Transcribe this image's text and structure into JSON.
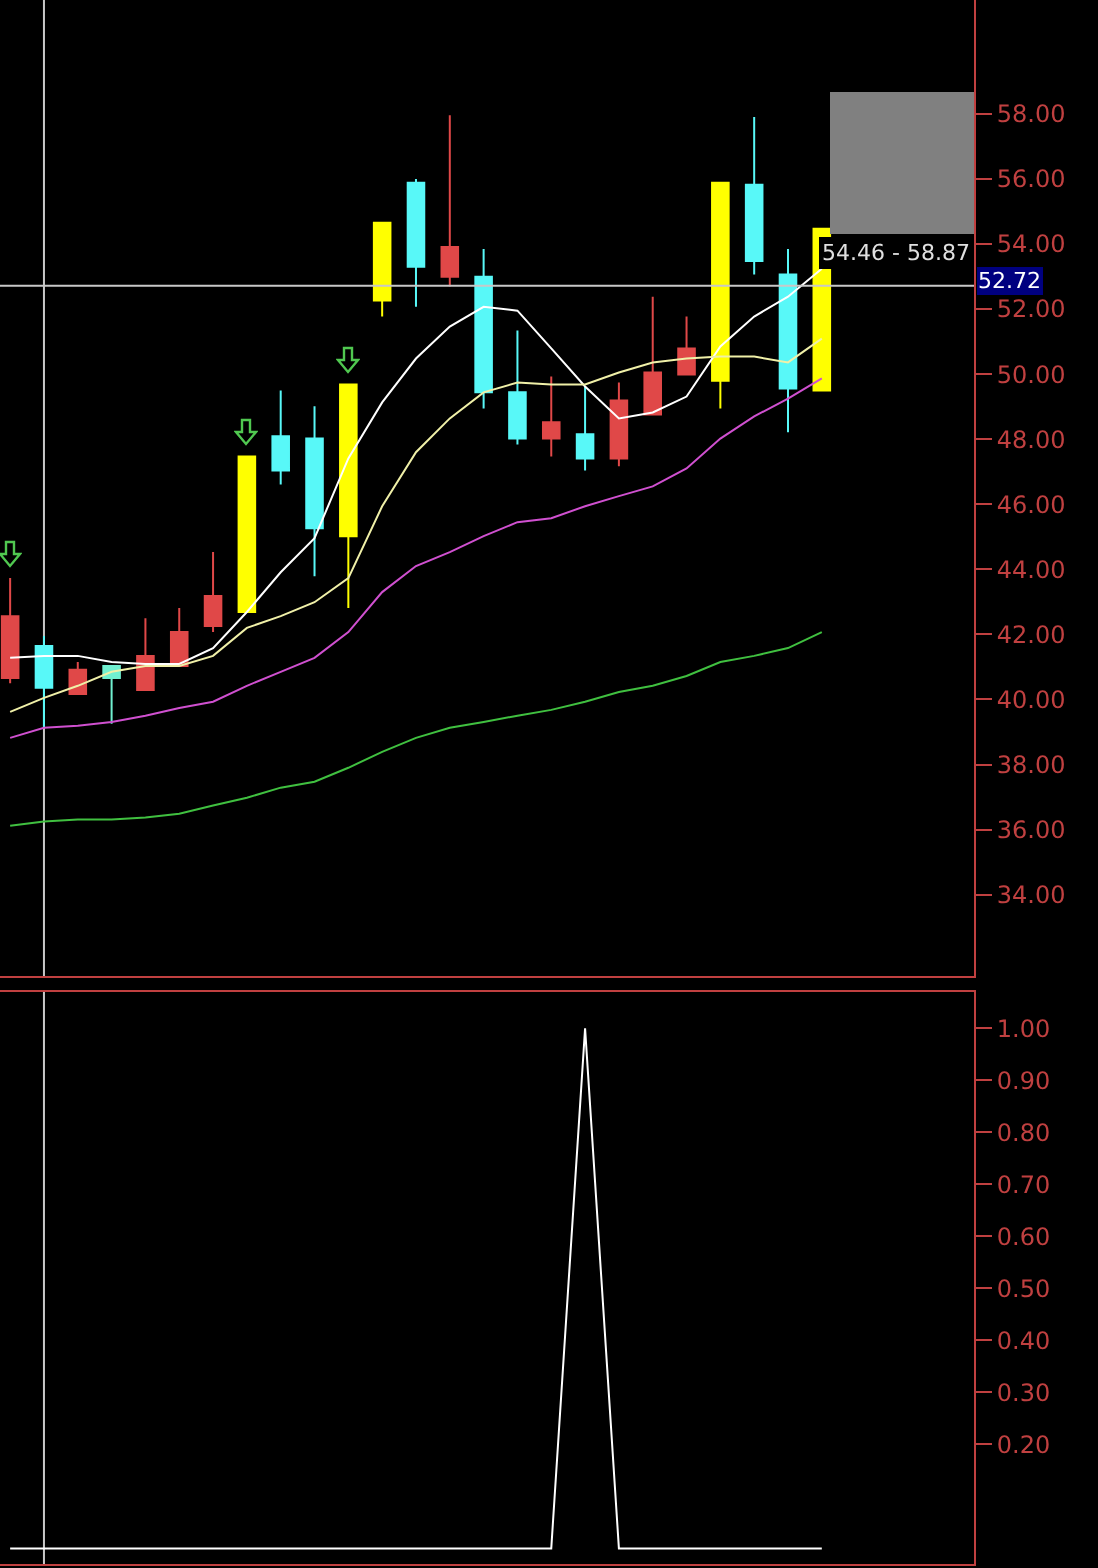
{
  "chart_data": [
    {
      "type": "candlestick",
      "categories": [
        null,
        null,
        null,
        null,
        null,
        null,
        null,
        null,
        null,
        null,
        null,
        null,
        null,
        null,
        null,
        null,
        null,
        null,
        null,
        null,
        null,
        null,
        null,
        null,
        null
      ],
      "ohlc": [
        [
          40.66,
          43.73,
          40.5,
          42.56
        ],
        [
          41.64,
          41.95,
          39.13,
          40.36
        ],
        [
          40.17,
          41.15,
          40.17,
          40.91
        ],
        [
          41.03,
          41.03,
          39.25,
          40.66
        ],
        [
          40.29,
          42.5,
          40.29,
          41.34
        ],
        [
          41.03,
          42.81,
          41.03,
          42.07
        ],
        [
          42.26,
          44.53,
          42.07,
          43.18
        ],
        [
          42.69,
          47.47,
          42.69,
          47.47
        ],
        [
          48.09,
          49.5,
          46.61,
          47.04
        ],
        [
          48.02,
          49.01,
          43.79,
          45.26
        ],
        [
          45.02,
          49.68,
          42.81,
          49.68
        ],
        [
          52.26,
          54.65,
          51.77,
          54.65
        ],
        [
          55.88,
          56.0,
          52.07,
          53.3
        ],
        [
          52.99,
          57.96,
          52.69,
          53.91
        ],
        [
          52.99,
          53.85,
          48.94,
          49.44
        ],
        [
          49.44,
          51.34,
          47.84,
          48.02
        ],
        [
          48.02,
          49.93,
          47.47,
          48.52
        ],
        [
          48.15,
          49.62,
          47.04,
          47.41
        ],
        [
          47.41,
          49.74,
          47.17,
          49.19
        ],
        [
          48.76,
          52.38,
          48.76,
          50.05
        ],
        [
          49.99,
          51.77,
          49.99,
          50.79
        ],
        [
          49.8,
          55.88,
          48.94,
          55.88
        ],
        [
          55.82,
          57.9,
          53.06,
          53.48
        ],
        [
          53.06,
          53.85,
          48.21,
          49.56
        ],
        [
          49.5,
          54.47,
          49.5,
          54.47
        ]
      ],
      "colors": [
        "#e04848",
        "#58f8f8",
        "#e04848",
        "#70f0d0",
        "#e04848",
        "#e04848",
        "#e04848",
        "#ffff00",
        "#58f8f8",
        "#58f8f8",
        "#ffff00",
        "#ffff00",
        "#58f8f8",
        "#e04848",
        "#58f8f8",
        "#58f8f8",
        "#e04848",
        "#58f8f8",
        "#e04848",
        "#e04848",
        "#e04848",
        "#ffff00",
        "#58f8f8",
        "#58f8f8",
        "#ffff00"
      ],
      "series": [
        {
          "type": "line",
          "color": "#ffffff",
          "values": [
            41.28,
            41.34,
            41.34,
            41.15,
            41.09,
            41.09,
            41.58,
            42.69,
            43.91,
            44.96,
            47.41,
            49.13,
            50.48,
            51.46,
            52.07,
            51.95,
            50.79,
            49.62,
            48.64,
            48.82,
            49.31,
            50.85,
            51.77,
            52.38,
            53.24
          ]
        },
        {
          "type": "line",
          "color": "#f0f0a8",
          "values": [
            39.62,
            40.05,
            40.42,
            40.85,
            41.03,
            41.03,
            41.34,
            42.2,
            42.56,
            42.99,
            43.73,
            45.94,
            47.6,
            48.64,
            49.44,
            49.74,
            49.68,
            49.68,
            50.05,
            50.36,
            50.48,
            50.54,
            50.54,
            50.36,
            51.09
          ]
        },
        {
          "type": "line",
          "color": "#d050d0",
          "values": [
            38.82,
            39.13,
            39.19,
            39.31,
            39.5,
            39.74,
            39.93,
            40.42,
            40.85,
            41.28,
            42.07,
            43.3,
            44.1,
            44.53,
            45.02,
            45.45,
            45.57,
            45.94,
            46.25,
            46.55,
            47.1,
            48.02,
            48.7,
            49.25,
            49.87
          ]
        },
        {
          "type": "line",
          "color": "#40c040",
          "values": [
            36.12,
            36.25,
            36.31,
            36.31,
            36.37,
            36.49,
            36.74,
            36.98,
            37.29,
            37.47,
            37.9,
            38.39,
            38.82,
            39.13,
            39.31,
            39.5,
            39.68,
            39.93,
            40.23,
            40.42,
            40.72,
            41.15,
            41.34,
            41.58,
            42.07
          ]
        }
      ],
      "ylim": [
        31.5,
        61.5
      ],
      "yticks": [
        {
          "value": 34,
          "label": "34.00"
        },
        {
          "value": 36,
          "label": "36.00"
        },
        {
          "value": 38,
          "label": "38.00"
        },
        {
          "value": 40,
          "label": "40.00"
        },
        {
          "value": 42,
          "label": "42.00"
        },
        {
          "value": 44,
          "label": "44.00"
        },
        {
          "value": 46,
          "label": "46.00"
        },
        {
          "value": 48,
          "label": "48.00"
        },
        {
          "value": 50,
          "label": "50.00"
        },
        {
          "value": 52,
          "label": "52.00"
        },
        {
          "value": 54,
          "label": "54.00"
        },
        {
          "value": 56,
          "label": "56.00"
        },
        {
          "value": 58,
          "label": "58.00"
        }
      ],
      "tick_labels": "y",
      "ref_lines": [
        {
          "axis": "y",
          "value": 52.72,
          "label": "52.72",
          "color": "#c8c8c8"
        }
      ],
      "annotations": [
        "54.46 - 58.87"
      ]
    },
    {
      "type": "line",
      "categories": [
        null,
        null,
        null,
        null,
        null,
        null,
        null,
        null,
        null,
        null,
        null,
        null,
        null,
        null,
        null,
        null,
        null,
        null,
        null,
        null,
        null,
        null,
        null,
        null,
        null
      ],
      "values": [
        0,
        0,
        0,
        0,
        0,
        0,
        0,
        0,
        0,
        0,
        0,
        0,
        0,
        0,
        0,
        0,
        0,
        1,
        0,
        0,
        0,
        0,
        0,
        0,
        0
      ],
      "color": "#ffffff",
      "ylim": [
        -0.03,
        1.07
      ],
      "yticks": [
        {
          "value": 0.2,
          "label": "0.20"
        },
        {
          "value": 0.3,
          "label": "0.30"
        },
        {
          "value": 0.4,
          "label": "0.40"
        },
        {
          "value": 0.5,
          "label": "0.50"
        },
        {
          "value": 0.6,
          "label": "0.60"
        },
        {
          "value": 0.7,
          "label": "0.70"
        },
        {
          "value": 0.8,
          "label": "0.80"
        },
        {
          "value": 0.9,
          "label": "0.90"
        },
        {
          "value": 1,
          "label": "1.00"
        }
      ],
      "tick_labels": "y"
    }
  ]
}
